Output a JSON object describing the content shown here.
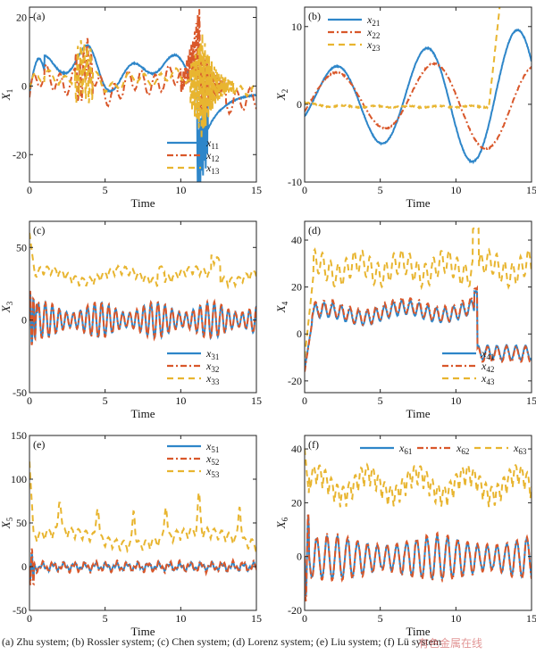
{
  "caption": "(a) Zhu system; (b) Rossler system; (c) Chen system; (d) Lorenz system; (e) Liu system; (f) Lü system",
  "watermark": "有色金属在线",
  "colors": {
    "s1": "#2e86c9",
    "s2": "#d9572a",
    "s3": "#e8b530"
  },
  "chart_data": [
    {
      "id": "a",
      "panel_label": "(a)",
      "type": "line",
      "xlabel": "Time",
      "ylabel": "X",
      "ylabel_sub": "1",
      "xlim": [
        0,
        15
      ],
      "ylim": [
        -28,
        23
      ],
      "xticks": [
        "0",
        "5",
        "10",
        "15"
      ],
      "yticks": [
        "-20",
        "0",
        "20"
      ],
      "legend_position": "bottom-right",
      "series": [
        {
          "name": "x",
          "sub": "11",
          "dash": "solid"
        },
        {
          "name": "x",
          "sub": "12",
          "dash": "dashdot"
        },
        {
          "name": "x",
          "sub": "13",
          "dash": "dashed"
        }
      ]
    },
    {
      "id": "b",
      "panel_label": "(b)",
      "type": "line",
      "xlabel": "Time",
      "ylabel": "X",
      "ylabel_sub": "2",
      "xlim": [
        0,
        15
      ],
      "ylim": [
        -10,
        12.5
      ],
      "xticks": [
        "0",
        "5",
        "10",
        "15"
      ],
      "yticks": [
        "-10",
        "0",
        "10"
      ],
      "legend_position": "top-left",
      "series": [
        {
          "name": "x",
          "sub": "21",
          "dash": "solid"
        },
        {
          "name": "x",
          "sub": "22",
          "dash": "dashdot"
        },
        {
          "name": "x",
          "sub": "23",
          "dash": "dashed"
        }
      ]
    },
    {
      "id": "c",
      "panel_label": "(c)",
      "type": "line",
      "xlabel": "Time",
      "ylabel": "X",
      "ylabel_sub": "3",
      "xlim": [
        0,
        15
      ],
      "ylim": [
        -50,
        68
      ],
      "xticks": [
        "0",
        "5",
        "10",
        "15"
      ],
      "yticks": [
        "-50",
        "0",
        "50"
      ],
      "legend_position": "bottom-right",
      "series": [
        {
          "name": "x",
          "sub": "31",
          "dash": "solid"
        },
        {
          "name": "x",
          "sub": "32",
          "dash": "dashdot"
        },
        {
          "name": "x",
          "sub": "33",
          "dash": "dashed"
        }
      ]
    },
    {
      "id": "d",
      "panel_label": "(d)",
      "type": "line",
      "xlabel": "Time",
      "ylabel": "X",
      "ylabel_sub": "4",
      "xlim": [
        0,
        15
      ],
      "ylim": [
        -25,
        48
      ],
      "xticks": [
        "0",
        "5",
        "10",
        "15"
      ],
      "yticks": [
        "-20",
        "0",
        "20",
        "40"
      ],
      "legend_position": "bottom-right",
      "series": [
        {
          "name": "x",
          "sub": "41",
          "dash": "solid"
        },
        {
          "name": "x",
          "sub": "42",
          "dash": "dashdot"
        },
        {
          "name": "x",
          "sub": "43",
          "dash": "dashed"
        }
      ]
    },
    {
      "id": "e",
      "panel_label": "(e)",
      "type": "line",
      "xlabel": "Time",
      "ylabel": "X",
      "ylabel_sub": "5",
      "xlim": [
        0,
        15
      ],
      "ylim": [
        -50,
        150
      ],
      "xticks": [
        "0",
        "5",
        "10",
        "15"
      ],
      "yticks": [
        "-50",
        "0",
        "50",
        "100",
        "150"
      ],
      "legend_position": "top-right",
      "series": [
        {
          "name": "x",
          "sub": "51",
          "dash": "solid"
        },
        {
          "name": "x",
          "sub": "52",
          "dash": "dashdot"
        },
        {
          "name": "x",
          "sub": "53",
          "dash": "dashed"
        }
      ]
    },
    {
      "id": "f",
      "panel_label": "(f)",
      "type": "line",
      "xlabel": "Time",
      "ylabel": "X",
      "ylabel_sub": "6",
      "xlim": [
        0,
        15
      ],
      "ylim": [
        -20,
        45
      ],
      "xticks": [
        "0",
        "5",
        "10",
        "15"
      ],
      "yticks": [
        "-20",
        "0",
        "20",
        "40"
      ],
      "legend_position": "top",
      "series": [
        {
          "name": "x",
          "sub": "61",
          "dash": "solid"
        },
        {
          "name": "x",
          "sub": "62",
          "dash": "dashdot"
        },
        {
          "name": "x",
          "sub": "63",
          "dash": "dashed"
        }
      ]
    }
  ]
}
